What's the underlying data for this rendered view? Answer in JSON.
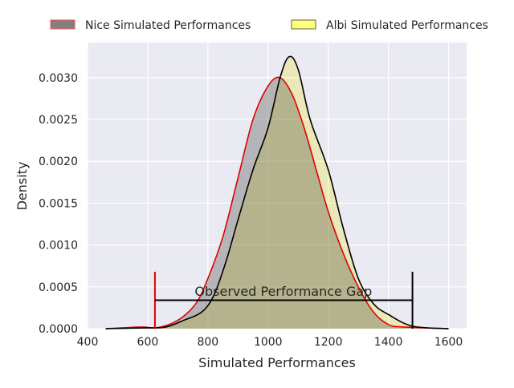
{
  "chart_data": {
    "type": "area",
    "title": "",
    "xlabel": "Simulated Performances",
    "ylabel": "Density",
    "xlim": [
      400,
      1660
    ],
    "ylim": [
      0,
      0.00342
    ],
    "xticks": [
      400,
      600,
      800,
      1000,
      1200,
      1400,
      1600
    ],
    "yticks": [
      0,
      0.0005,
      0.001,
      0.0015,
      0.002,
      0.0025,
      0.003
    ],
    "ytick_labels": [
      "0.0000",
      "0.0005",
      "0.0010",
      "0.0015",
      "0.0020",
      "0.0025",
      "0.0030"
    ],
    "grid": true,
    "legend_position": "top",
    "series": [
      {
        "name": "Nice Simulated Performances",
        "fill": "#808080",
        "line": "#e00000",
        "x": [
          460,
          580,
          630,
          700,
          760,
          800,
          850,
          900,
          950,
          1000,
          1040,
          1080,
          1120,
          1160,
          1200,
          1250,
          1300,
          1350,
          1400,
          1450,
          1600
        ],
        "y": [
          0,
          2e-05,
          1e-05,
          0.0001,
          0.0003,
          0.0006,
          0.0011,
          0.0018,
          0.0025,
          0.0029,
          0.003,
          0.0028,
          0.0024,
          0.0019,
          0.0014,
          0.0009,
          0.0005,
          0.0002,
          5e-05,
          2e-05,
          0
        ]
      },
      {
        "name": "Albi Simulated Performances",
        "fill": "#ffff80",
        "line": "#000000",
        "x": [
          460,
          600,
          660,
          720,
          780,
          820,
          860,
          900,
          950,
          1000,
          1040,
          1070,
          1100,
          1140,
          1200,
          1250,
          1300,
          1350,
          1400,
          1480,
          1600
        ],
        "y": [
          0,
          1e-05,
          2e-05,
          0.0001,
          0.0002,
          0.0004,
          0.0008,
          0.0013,
          0.0019,
          0.0024,
          0.003,
          0.00325,
          0.0031,
          0.0025,
          0.0019,
          0.0012,
          0.0006,
          0.0003,
          0.00017,
          3e-05,
          0
        ]
      }
    ],
    "annotations": {
      "gap_label": "Observed Performance Gap",
      "nice_observed": 624,
      "albi_observed": 1480,
      "marker_height": 0.00068,
      "gap_line_y": 0.00034,
      "label_x": 1051,
      "label_y": 0.0004
    }
  }
}
